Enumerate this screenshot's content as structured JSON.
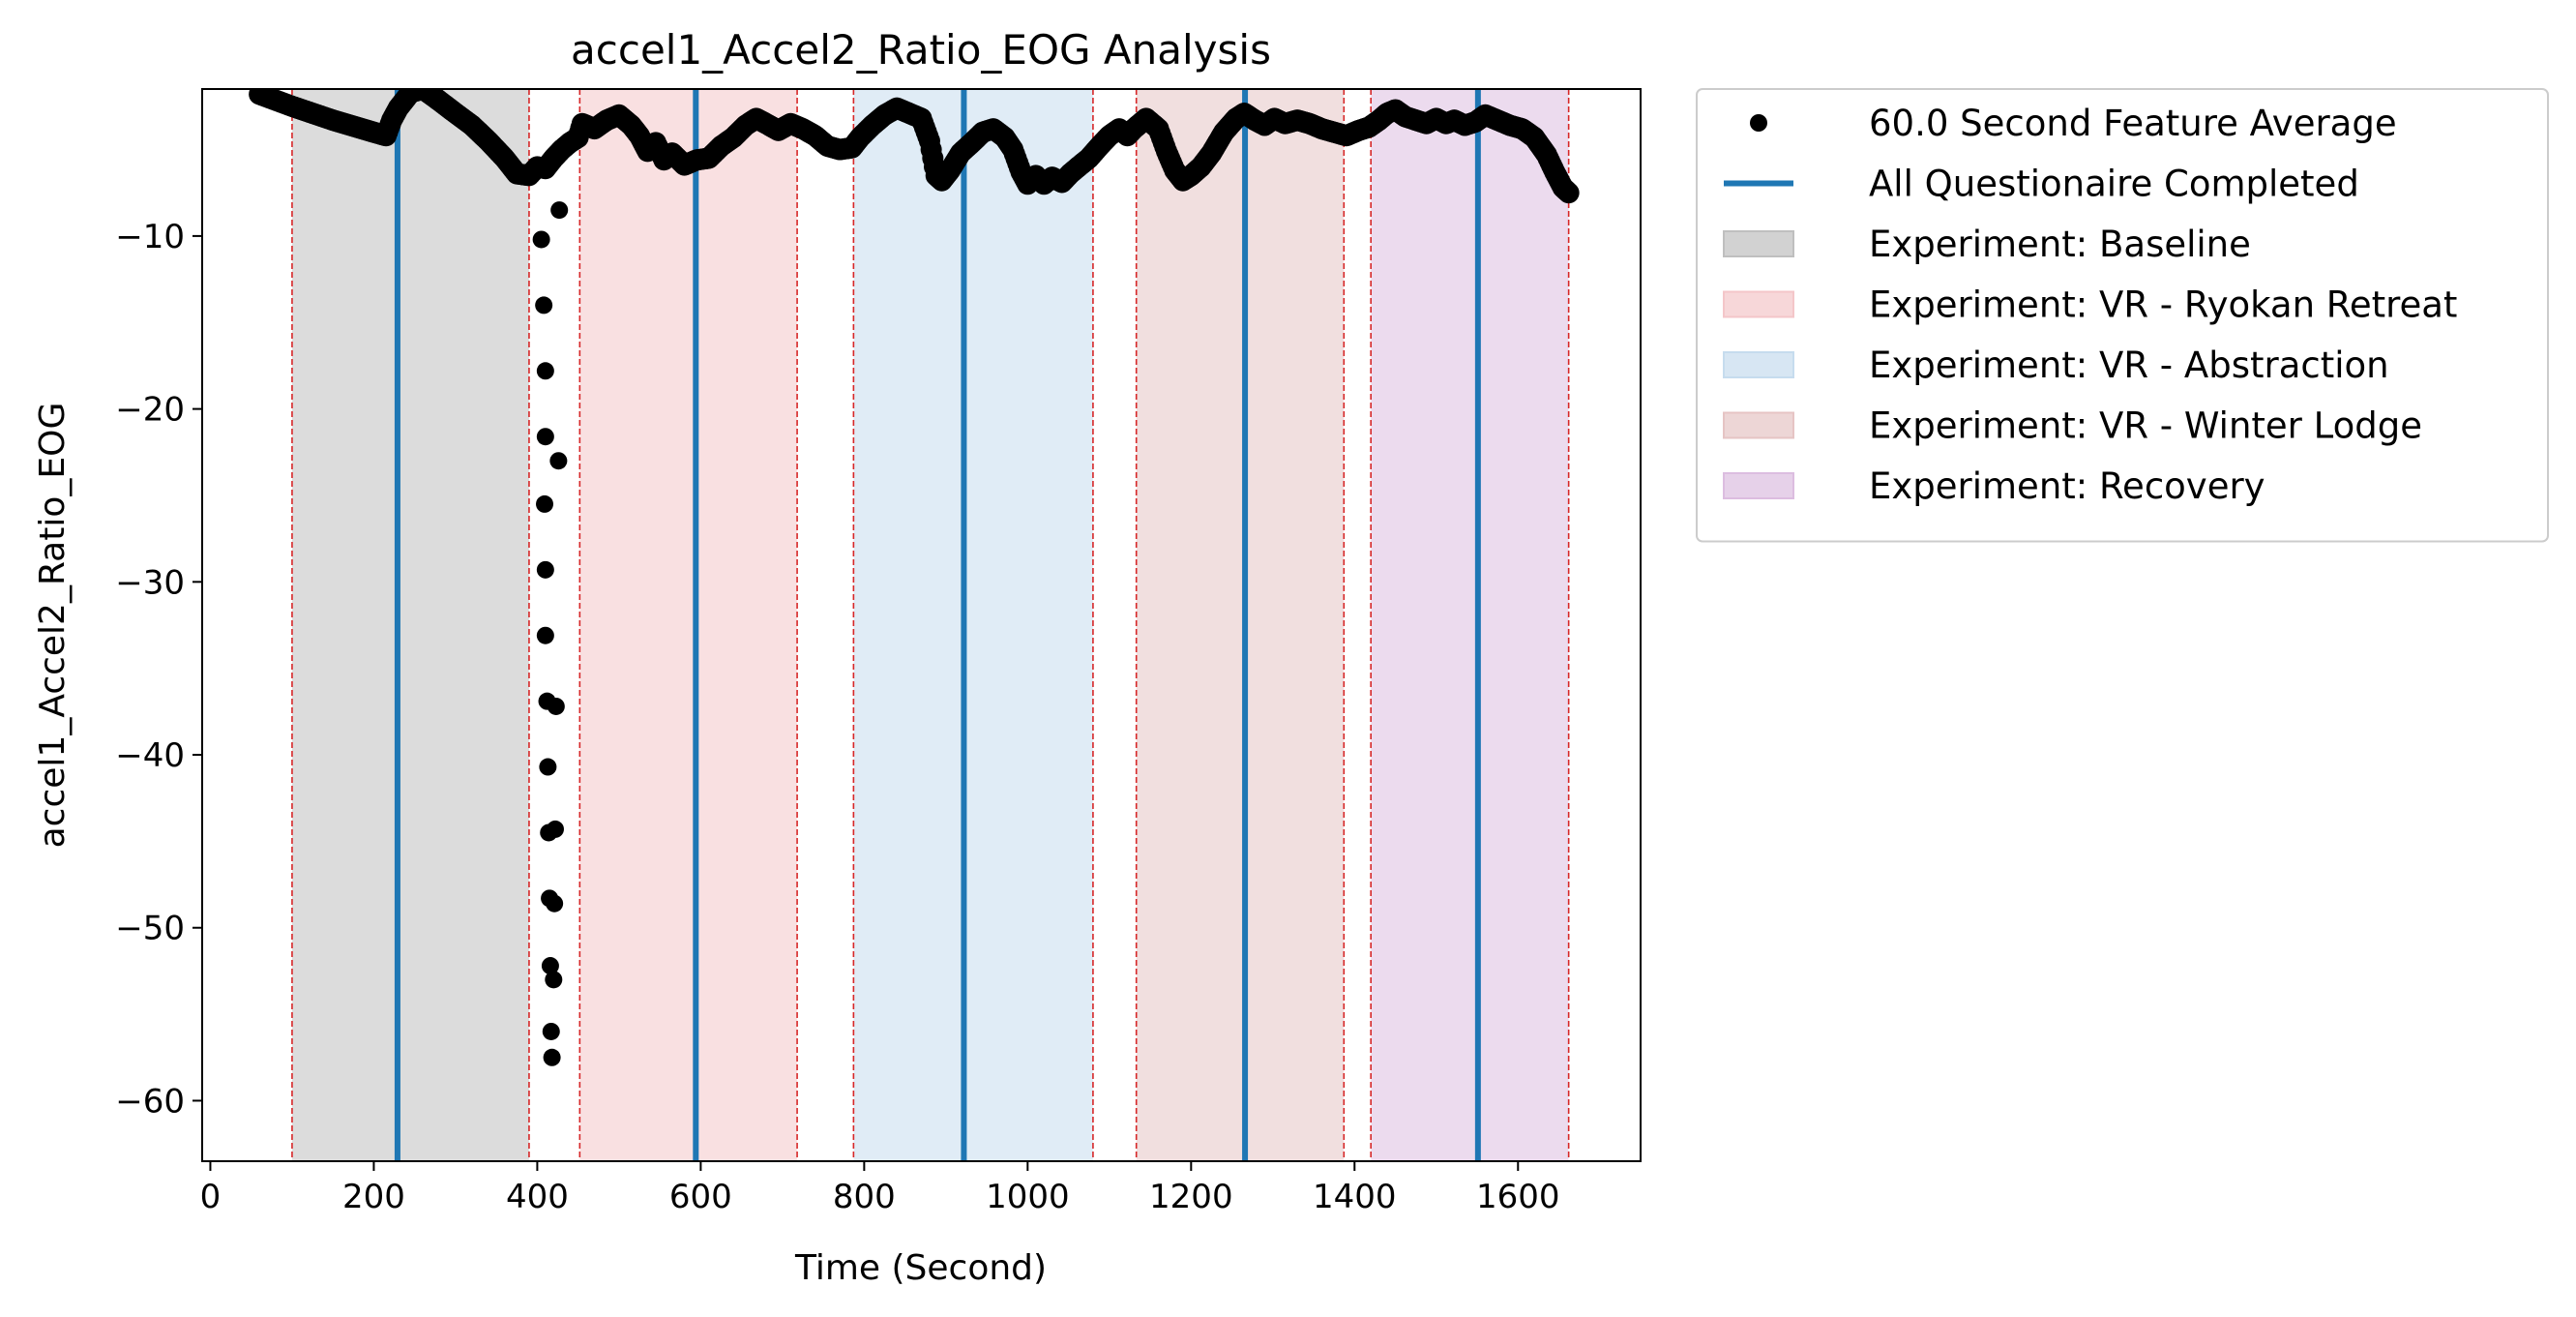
{
  "chart_data": {
    "type": "scatter",
    "title": "accel1_Accel2_Ratio_EOG Analysis",
    "xlabel": "Time (Second)",
    "ylabel": "accel1_Accel2_Ratio_EOG",
    "xlim": [
      -10,
      1750
    ],
    "ylim": [
      -63.5,
      -1.5
    ],
    "xticks": [
      0,
      200,
      400,
      600,
      800,
      1000,
      1200,
      1400,
      1600
    ],
    "yticks": [
      -10,
      -20,
      -30,
      -40,
      -50,
      -60
    ],
    "grid": false,
    "legend_placement": "outside upper right",
    "legend": [
      {
        "label": "60.0 Second Feature Average",
        "kind": "marker",
        "color": "#000000"
      },
      {
        "label": "All Questionaire Completed",
        "kind": "line",
        "color": "#1f77b4"
      },
      {
        "label": "Experiment: Baseline",
        "kind": "patch",
        "color": "#bfbfbf"
      },
      {
        "label": "Experiment: VR - Ryokan Retreat",
        "kind": "patch",
        "color": "#f4c6c9"
      },
      {
        "label": "Experiment: VR - Abstraction",
        "kind": "patch",
        "color": "#c6dcee"
      },
      {
        "label": "Experiment: VR - Winter Lodge",
        "kind": "patch",
        "color": "#e6c4c4"
      },
      {
        "label": "Experiment: Recovery",
        "kind": "patch",
        "color": "#dcbde0"
      }
    ],
    "experiments": [
      {
        "name": "Baseline",
        "start": 100,
        "end": 390,
        "color": "#bfbfbf"
      },
      {
        "name": "VR - Ryokan Retreat",
        "start": 452,
        "end": 718,
        "color": "#f4c6c9"
      },
      {
        "name": "VR - Abstraction",
        "start": 787,
        "end": 1080,
        "color": "#c6dcee"
      },
      {
        "name": "VR - Winter Lodge",
        "start": 1133,
        "end": 1387,
        "color": "#e6c4c4"
      },
      {
        "name": "Recovery",
        "start": 1420,
        "end": 1662,
        "color": "#dcbde0"
      }
    ],
    "questionnaire_times": [
      229,
      594,
      922,
      1266,
      1551
    ],
    "series": [
      {
        "name": "60.0 Second Feature Average",
        "color": "#000000",
        "trace": [
          [
            60,
            -1.8
          ],
          [
            100,
            -2.5
          ],
          [
            150,
            -3.3
          ],
          [
            200,
            -4.0
          ],
          [
            215,
            -4.2
          ],
          [
            222,
            -3.3
          ],
          [
            230,
            -2.6
          ],
          [
            245,
            -1.7
          ],
          [
            260,
            -1.5
          ],
          [
            275,
            -2.0
          ],
          [
            300,
            -2.9
          ],
          [
            320,
            -3.6
          ],
          [
            340,
            -4.5
          ],
          [
            360,
            -5.5
          ],
          [
            375,
            -6.4
          ],
          [
            390,
            -6.5
          ],
          [
            400,
            -6.0
          ],
          [
            410,
            -6.1
          ],
          [
            420,
            -5.5
          ],
          [
            430,
            -5.0
          ],
          [
            440,
            -4.6
          ],
          [
            450,
            -4.3
          ],
          [
            455,
            -3.5
          ],
          [
            470,
            -3.8
          ],
          [
            485,
            -3.3
          ],
          [
            500,
            -3.0
          ],
          [
            515,
            -3.6
          ],
          [
            525,
            -4.2
          ],
          [
            535,
            -5.1
          ],
          [
            545,
            -4.6
          ],
          [
            555,
            -5.6
          ],
          [
            565,
            -5.2
          ],
          [
            580,
            -5.9
          ],
          [
            595,
            -5.6
          ],
          [
            610,
            -5.5
          ],
          [
            625,
            -4.8
          ],
          [
            640,
            -4.3
          ],
          [
            655,
            -3.6
          ],
          [
            668,
            -3.2
          ],
          [
            680,
            -3.5
          ],
          [
            695,
            -3.9
          ],
          [
            710,
            -3.5
          ],
          [
            725,
            -3.8
          ],
          [
            740,
            -4.2
          ],
          [
            755,
            -4.8
          ],
          [
            770,
            -5.0
          ],
          [
            785,
            -4.9
          ],
          [
            795,
            -4.3
          ],
          [
            810,
            -3.6
          ],
          [
            825,
            -3.0
          ],
          [
            840,
            -2.6
          ],
          [
            855,
            -2.9
          ],
          [
            870,
            -3.2
          ],
          [
            880,
            -4.5
          ],
          [
            888,
            -6.5
          ],
          [
            895,
            -6.8
          ],
          [
            905,
            -6.2
          ],
          [
            918,
            -5.2
          ],
          [
            932,
            -4.6
          ],
          [
            945,
            -4.0
          ],
          [
            958,
            -3.8
          ],
          [
            972,
            -4.3
          ],
          [
            982,
            -5.0
          ],
          [
            992,
            -6.3
          ],
          [
            1000,
            -7.0
          ],
          [
            1010,
            -6.5
          ],
          [
            1020,
            -7.0
          ],
          [
            1030,
            -6.6
          ],
          [
            1042,
            -6.9
          ],
          [
            1052,
            -6.4
          ],
          [
            1062,
            -6.0
          ],
          [
            1075,
            -5.5
          ],
          [
            1088,
            -4.8
          ],
          [
            1100,
            -4.2
          ],
          [
            1112,
            -3.8
          ],
          [
            1122,
            -4.2
          ],
          [
            1130,
            -3.8
          ],
          [
            1145,
            -3.2
          ],
          [
            1160,
            -3.8
          ],
          [
            1170,
            -5.1
          ],
          [
            1180,
            -6.2
          ],
          [
            1190,
            -6.8
          ],
          [
            1200,
            -6.5
          ],
          [
            1212,
            -6.0
          ],
          [
            1225,
            -5.2
          ],
          [
            1240,
            -4.0
          ],
          [
            1255,
            -3.2
          ],
          [
            1265,
            -2.9
          ],
          [
            1278,
            -3.3
          ],
          [
            1290,
            -3.6
          ],
          [
            1302,
            -3.2
          ],
          [
            1315,
            -3.5
          ],
          [
            1330,
            -3.3
          ],
          [
            1345,
            -3.5
          ],
          [
            1360,
            -3.8
          ],
          [
            1375,
            -4.0
          ],
          [
            1390,
            -4.2
          ],
          [
            1405,
            -3.9
          ],
          [
            1418,
            -3.7
          ],
          [
            1430,
            -3.3
          ],
          [
            1440,
            -2.9
          ],
          [
            1450,
            -2.7
          ],
          [
            1462,
            -3.1
          ],
          [
            1475,
            -3.3
          ],
          [
            1488,
            -3.5
          ],
          [
            1500,
            -3.2
          ],
          [
            1512,
            -3.5
          ],
          [
            1522,
            -3.3
          ],
          [
            1535,
            -3.6
          ],
          [
            1548,
            -3.4
          ],
          [
            1560,
            -3.0
          ],
          [
            1575,
            -3.3
          ],
          [
            1590,
            -3.6
          ],
          [
            1605,
            -3.8
          ],
          [
            1620,
            -4.3
          ],
          [
            1635,
            -5.3
          ],
          [
            1645,
            -6.3
          ],
          [
            1655,
            -7.2
          ],
          [
            1662,
            -7.5
          ]
        ],
        "outliers": [
          [
            405,
            -10.2
          ],
          [
            408,
            -14.0
          ],
          [
            410,
            -17.8
          ],
          [
            410,
            -21.6
          ],
          [
            409,
            -25.5
          ],
          [
            410,
            -29.3
          ],
          [
            410,
            -33.1
          ],
          [
            412,
            -36.9
          ],
          [
            413,
            -40.7
          ],
          [
            414,
            -44.5
          ],
          [
            415,
            -48.3
          ],
          [
            416,
            -52.2
          ],
          [
            417,
            -56.0
          ],
          [
            418,
            -57.5
          ],
          [
            420,
            -53.0
          ],
          [
            421,
            -48.6
          ],
          [
            422,
            -44.3
          ],
          [
            423,
            -37.2
          ],
          [
            426,
            -23.0
          ],
          [
            427,
            -8.5
          ]
        ]
      }
    ]
  }
}
